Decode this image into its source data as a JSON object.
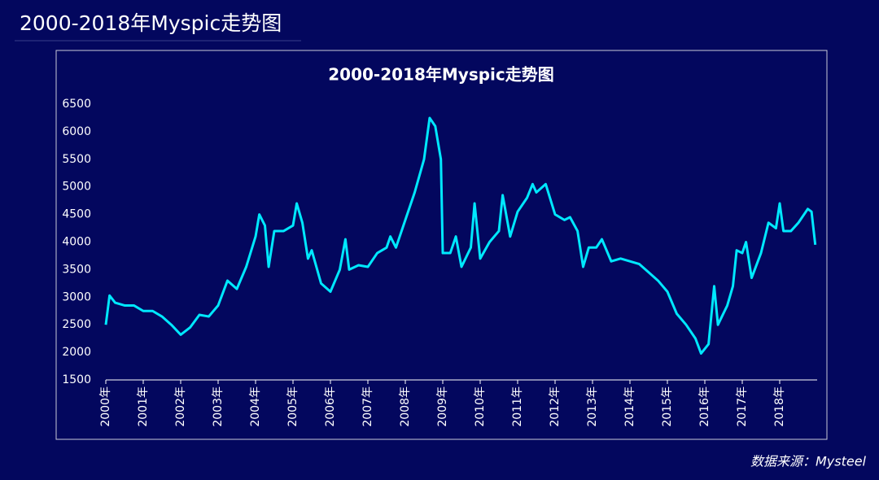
{
  "page_title": "2000-2018年Myspic走势图",
  "source": "数据来源：Mysteel",
  "chart_data": {
    "type": "line",
    "title": "2000-2018年Myspic走势图",
    "x": [
      2000.0,
      2000.1,
      2000.25,
      2000.5,
      2000.75,
      2001.0,
      2001.25,
      2001.5,
      2001.75,
      2002.0,
      2002.25,
      2002.5,
      2002.75,
      2003.0,
      2003.25,
      2003.5,
      2003.75,
      2004.0,
      2004.1,
      2004.25,
      2004.35,
      2004.5,
      2004.75,
      2005.0,
      2005.1,
      2005.25,
      2005.4,
      2005.5,
      2005.75,
      2006.0,
      2006.25,
      2006.4,
      2006.5,
      2006.75,
      2007.0,
      2007.25,
      2007.5,
      2007.6,
      2007.75,
      2008.0,
      2008.25,
      2008.5,
      2008.65,
      2008.8,
      2008.95,
      2009.0,
      2009.2,
      2009.35,
      2009.5,
      2009.75,
      2009.85,
      2010.0,
      2010.25,
      2010.5,
      2010.6,
      2010.8,
      2011.0,
      2011.25,
      2011.4,
      2011.5,
      2011.75,
      2012.0,
      2012.25,
      2012.4,
      2012.6,
      2012.75,
      2012.9,
      2013.1,
      2013.25,
      2013.5,
      2013.75,
      2014.0,
      2014.25,
      2014.5,
      2014.75,
      2015.0,
      2015.25,
      2015.5,
      2015.75,
      2015.9,
      2016.1,
      2016.25,
      2016.35,
      2016.6,
      2016.75,
      2016.85,
      2017.0,
      2017.1,
      2017.25,
      2017.5,
      2017.7,
      2017.9,
      2018.0,
      2018.1,
      2018.3,
      2018.5,
      2018.75,
      2018.85,
      2018.95
    ],
    "series": [
      {
        "name": "Myspic",
        "color": "#00e8ff",
        "values": [
          2500,
          3030,
          2900,
          2850,
          2850,
          2750,
          2750,
          2650,
          2500,
          2320,
          2450,
          2680,
          2650,
          2850,
          3300,
          3150,
          3550,
          4100,
          4500,
          4300,
          3550,
          4200,
          4200,
          4300,
          4700,
          4350,
          3700,
          3850,
          3250,
          3100,
          3500,
          4050,
          3500,
          3580,
          3550,
          3800,
          3900,
          4100,
          3900,
          4400,
          4900,
          5500,
          6250,
          6100,
          5500,
          3800,
          3800,
          4100,
          3550,
          3900,
          4700,
          3700,
          4000,
          4200,
          4850,
          4100,
          4550,
          4800,
          5050,
          4900,
          5050,
          4500,
          4400,
          4450,
          4200,
          3550,
          3900,
          3900,
          4050,
          3650,
          3700,
          3650,
          3600,
          3450,
          3300,
          3100,
          2700,
          2500,
          2250,
          1980,
          2150,
          3200,
          2500,
          2850,
          3200,
          3850,
          3800,
          4000,
          3350,
          3800,
          4350,
          4250,
          4700,
          4200,
          4200,
          4350,
          4600,
          4550,
          3950
        ]
      }
    ],
    "xlim": [
      2000,
      2019
    ],
    "xticks": [
      {
        "value": 2000,
        "label": "2000年"
      },
      {
        "value": 2001,
        "label": "2001年"
      },
      {
        "value": 2002,
        "label": "2002年"
      },
      {
        "value": 2003,
        "label": "2003年"
      },
      {
        "value": 2004,
        "label": "2004年"
      },
      {
        "value": 2005,
        "label": "2005年"
      },
      {
        "value": 2006,
        "label": "2006年"
      },
      {
        "value": 2007,
        "label": "2007年"
      },
      {
        "value": 2008,
        "label": "2008年"
      },
      {
        "value": 2009,
        "label": "2009年"
      },
      {
        "value": 2010,
        "label": "2010年"
      },
      {
        "value": 2011,
        "label": "2011年"
      },
      {
        "value": 2012,
        "label": "2012年"
      },
      {
        "value": 2013,
        "label": "2013年"
      },
      {
        "value": 2014,
        "label": "2014年"
      },
      {
        "value": 2015,
        "label": "2015年"
      },
      {
        "value": 2016,
        "label": "2016年"
      },
      {
        "value": 2017,
        "label": "2017年"
      },
      {
        "value": 2018,
        "label": "2018年"
      }
    ],
    "ylim": [
      1500,
      6500
    ],
    "yticks": [
      1500,
      2000,
      2500,
      3000,
      3500,
      4000,
      4500,
      5000,
      5500,
      6000,
      6500
    ],
    "grid": false
  }
}
